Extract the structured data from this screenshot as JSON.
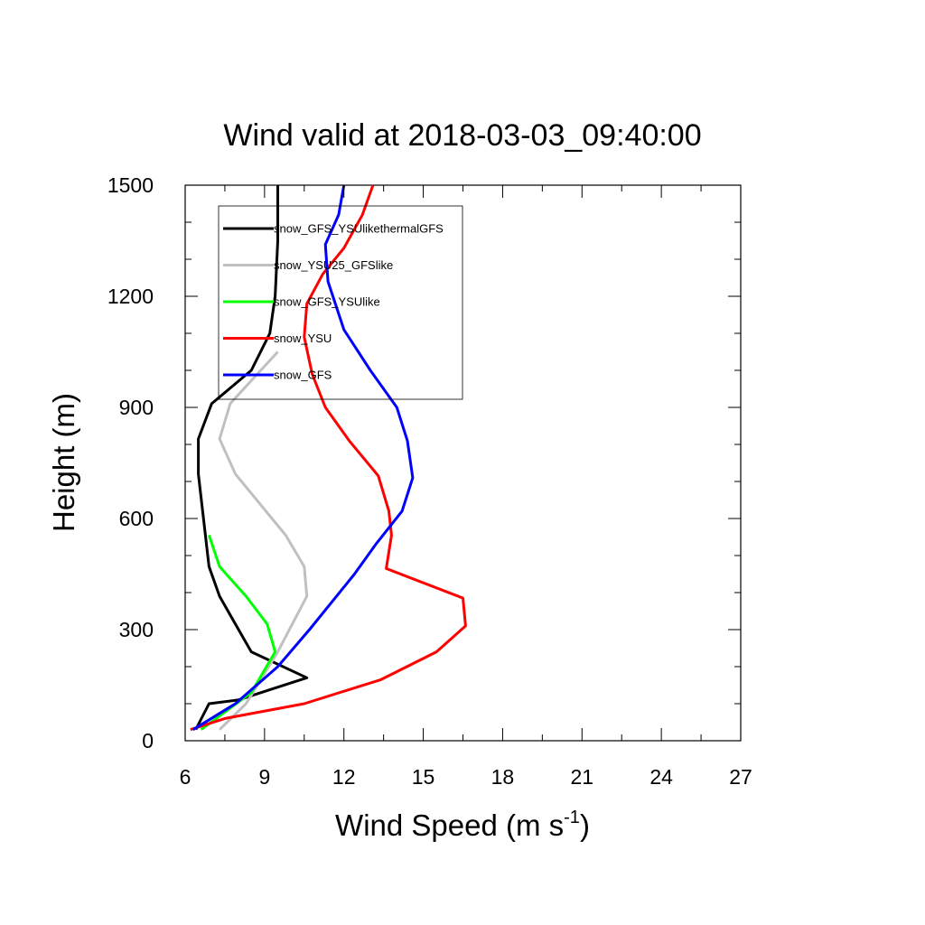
{
  "chart_data": {
    "type": "line",
    "title": "Wind valid at 2018-03-03_09:40:00",
    "xlabel": "Wind Speed (m s",
    "xlabel_sup": "-1",
    "xlabel_end": ")",
    "ylabel": "Height (m)",
    "xlim": [
      6,
      27
    ],
    "ylim": [
      0,
      1500
    ],
    "xticks": [
      "6",
      "9",
      "12",
      "15",
      "18",
      "21",
      "24",
      "27"
    ],
    "yticks": [
      "0",
      "300",
      "600",
      "900",
      "1200",
      "1500"
    ],
    "legend_position": "top-left",
    "series": [
      {
        "name": "snow_GFS_YSUlikethermalGFS",
        "color": "#000000",
        "x": [
          6.4,
          6.9,
          8.0,
          10.6,
          8.5,
          7.9,
          7.3,
          6.9,
          6.5,
          6.5,
          7.0,
          8.5,
          9.2,
          9.4,
          9.5,
          9.5
        ],
        "y": [
          30,
          100,
          110,
          170,
          240,
          315,
          390,
          470,
          720,
          815,
          910,
          1000,
          1100,
          1200,
          1350,
          1500
        ]
      },
      {
        "name": "snow_YSU25_GFSlike",
        "color": "#c0c0c0",
        "x": [
          7.3,
          8.3,
          9.5,
          10.6,
          10.5,
          9.8,
          7.9,
          7.3,
          7.7,
          9.5
        ],
        "y": [
          30,
          100,
          240,
          390,
          470,
          555,
          720,
          815,
          910,
          1050
        ]
      },
      {
        "name": "snow_GFS_YSUlike",
        "color": "#00ff00",
        "x": [
          6.6,
          8.5,
          9.4,
          9.1,
          8.3,
          7.3,
          6.9
        ],
        "y": [
          30,
          130,
          240,
          315,
          390,
          470,
          555
        ]
      },
      {
        "name": "snow_YSU",
        "color": "#ff0000",
        "x": [
          6.2,
          7.5,
          10.5,
          13.4,
          15.5,
          16.6,
          16.5,
          13.6,
          13.8,
          13.7,
          13.3,
          12.2,
          11.3,
          10.8,
          10.5,
          10.6,
          11.2,
          12.0,
          12.7,
          13.1
        ],
        "y": [
          30,
          60,
          100,
          165,
          240,
          310,
          385,
          465,
          555,
          620,
          715,
          810,
          900,
          990,
          1090,
          1180,
          1260,
          1330,
          1420,
          1500
        ],
        "legend_label": "snow_YSU"
      },
      {
        "name": "snow_GFS",
        "color": "#0000ff",
        "x": [
          6.3,
          7.9,
          9.5,
          10.7,
          12.4,
          13.2,
          14.2,
          14.6,
          14.4,
          14.0,
          13.0,
          12.0,
          11.4,
          11.3,
          11.8,
          12.0
        ],
        "y": [
          30,
          100,
          200,
          300,
          450,
          530,
          620,
          710,
          810,
          900,
          1000,
          1110,
          1240,
          1340,
          1420,
          1500
        ]
      }
    ]
  }
}
